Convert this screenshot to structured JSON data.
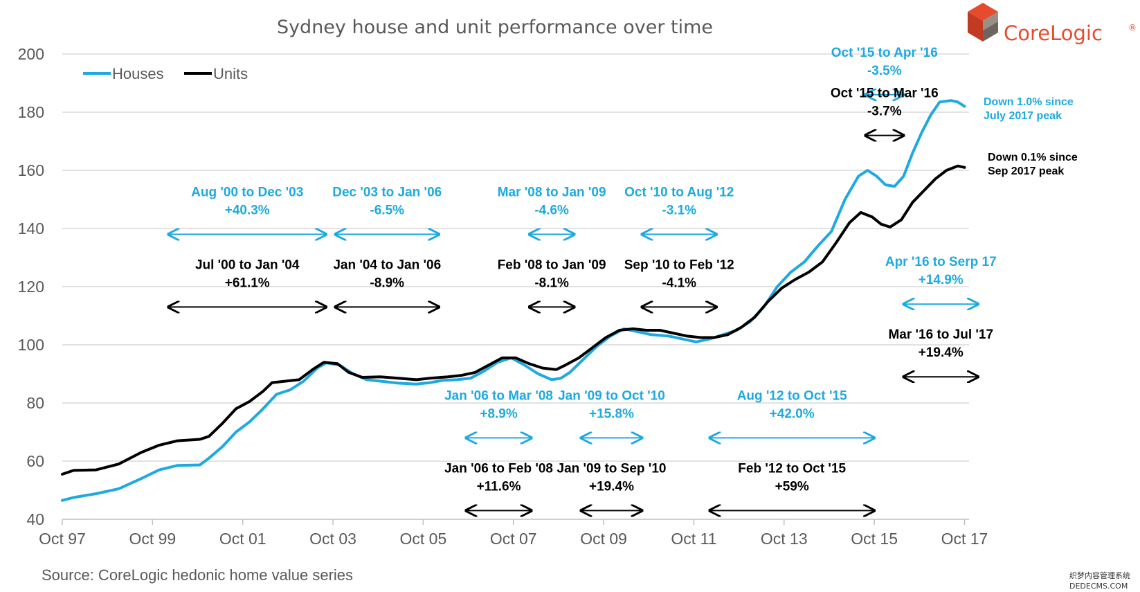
{
  "chart_data": {
    "type": "line",
    "title": "Sydney house and unit performance over time",
    "ylim": [
      40,
      200
    ],
    "yticks": [
      40,
      60,
      80,
      100,
      120,
      140,
      160,
      180,
      200
    ],
    "xticks": [
      "Oct 97",
      "Oct 99",
      "Oct 01",
      "Oct 03",
      "Oct 05",
      "Oct 07",
      "Oct 09",
      "Oct 11",
      "Oct 13",
      "Oct 15",
      "Oct 17"
    ],
    "xlim_years": [
      1997.75,
      2017.85
    ],
    "grid": "horizontal",
    "legend": "top-left",
    "series": [
      {
        "name": "Houses",
        "color": "#1ea9e0",
        "points": [
          [
            1997.75,
            46.5
          ],
          [
            1998.0,
            47.5
          ],
          [
            1998.5,
            48.8
          ],
          [
            1999.0,
            50.5
          ],
          [
            1999.5,
            54.0
          ],
          [
            1999.9,
            57.0
          ],
          [
            2000.3,
            58.5
          ],
          [
            2000.8,
            58.7
          ],
          [
            2001.0,
            61.0
          ],
          [
            2001.3,
            65.0
          ],
          [
            2001.6,
            70.0
          ],
          [
            2001.9,
            73.5
          ],
          [
            2002.2,
            78.0
          ],
          [
            2002.5,
            83.0
          ],
          [
            2002.8,
            84.5
          ],
          [
            2003.1,
            87.5
          ],
          [
            2003.4,
            92.0
          ],
          [
            2003.6,
            93.8
          ],
          [
            2003.9,
            93.0
          ],
          [
            2004.2,
            90.0
          ],
          [
            2004.5,
            88.0
          ],
          [
            2004.8,
            87.5
          ],
          [
            2005.2,
            86.8
          ],
          [
            2005.6,
            86.5
          ],
          [
            2005.9,
            87.0
          ],
          [
            2006.2,
            87.8
          ],
          [
            2006.5,
            88.0
          ],
          [
            2006.8,
            88.5
          ],
          [
            2007.1,
            91.0
          ],
          [
            2007.4,
            94.0
          ],
          [
            2007.7,
            95.5
          ],
          [
            2008.0,
            93.0
          ],
          [
            2008.3,
            90.0
          ],
          [
            2008.6,
            88.0
          ],
          [
            2008.8,
            88.5
          ],
          [
            2009.0,
            90.5
          ],
          [
            2009.3,
            95.0
          ],
          [
            2009.6,
            99.5
          ],
          [
            2009.9,
            103.0
          ],
          [
            2010.2,
            105.5
          ],
          [
            2010.5,
            104.5
          ],
          [
            2010.8,
            103.5
          ],
          [
            2011.2,
            103.0
          ],
          [
            2011.5,
            102.0
          ],
          [
            2011.8,
            101.0
          ],
          [
            2012.1,
            102.0
          ],
          [
            2012.4,
            103.5
          ],
          [
            2012.7,
            105.0
          ],
          [
            2013.0,
            108.0
          ],
          [
            2013.3,
            113.0
          ],
          [
            2013.6,
            120.0
          ],
          [
            2013.9,
            125.0
          ],
          [
            2014.2,
            128.5
          ],
          [
            2014.5,
            134.0
          ],
          [
            2014.8,
            139.0
          ],
          [
            2015.1,
            150.0
          ],
          [
            2015.4,
            158.0
          ],
          [
            2015.6,
            160.0
          ],
          [
            2015.8,
            158.0
          ],
          [
            2016.0,
            155.0
          ],
          [
            2016.2,
            154.5
          ],
          [
            2016.4,
            158.0
          ],
          [
            2016.6,
            166.0
          ],
          [
            2016.8,
            173.0
          ],
          [
            2017.0,
            179.0
          ],
          [
            2017.2,
            183.5
          ],
          [
            2017.45,
            184.0
          ],
          [
            2017.6,
            183.5
          ],
          [
            2017.75,
            182.0
          ]
        ]
      },
      {
        "name": "Units",
        "color": "#000000",
        "points": [
          [
            1997.75,
            55.5
          ],
          [
            1998.0,
            56.8
          ],
          [
            1998.5,
            57.0
          ],
          [
            1999.0,
            59.0
          ],
          [
            1999.5,
            63.0
          ],
          [
            1999.9,
            65.5
          ],
          [
            2000.3,
            67.0
          ],
          [
            2000.8,
            67.5
          ],
          [
            2001.0,
            68.5
          ],
          [
            2001.3,
            73.0
          ],
          [
            2001.6,
            78.0
          ],
          [
            2001.9,
            80.5
          ],
          [
            2002.2,
            84.0
          ],
          [
            2002.4,
            87.0
          ],
          [
            2002.7,
            87.5
          ],
          [
            2003.0,
            88.0
          ],
          [
            2003.3,
            91.5
          ],
          [
            2003.55,
            94.0
          ],
          [
            2003.85,
            93.5
          ],
          [
            2004.1,
            90.5
          ],
          [
            2004.4,
            88.8
          ],
          [
            2004.8,
            89.0
          ],
          [
            2005.2,
            88.5
          ],
          [
            2005.6,
            88.0
          ],
          [
            2005.9,
            88.5
          ],
          [
            2006.3,
            89.0
          ],
          [
            2006.6,
            89.5
          ],
          [
            2006.9,
            90.5
          ],
          [
            2007.2,
            93.0
          ],
          [
            2007.5,
            95.5
          ],
          [
            2007.8,
            95.5
          ],
          [
            2008.1,
            93.5
          ],
          [
            2008.4,
            92.0
          ],
          [
            2008.7,
            91.5
          ],
          [
            2008.9,
            93.0
          ],
          [
            2009.2,
            95.5
          ],
          [
            2009.5,
            99.0
          ],
          [
            2009.8,
            102.5
          ],
          [
            2010.1,
            105.0
          ],
          [
            2010.4,
            105.5
          ],
          [
            2010.7,
            105.0
          ],
          [
            2011.0,
            105.0
          ],
          [
            2011.3,
            104.0
          ],
          [
            2011.6,
            103.0
          ],
          [
            2011.9,
            102.5
          ],
          [
            2012.2,
            102.5
          ],
          [
            2012.5,
            103.5
          ],
          [
            2012.8,
            106.0
          ],
          [
            2013.1,
            109.5
          ],
          [
            2013.4,
            115.0
          ],
          [
            2013.7,
            119.5
          ],
          [
            2014.0,
            122.5
          ],
          [
            2014.3,
            125.0
          ],
          [
            2014.6,
            128.5
          ],
          [
            2014.9,
            135.0
          ],
          [
            2015.2,
            142.0
          ],
          [
            2015.45,
            145.5
          ],
          [
            2015.7,
            144.0
          ],
          [
            2015.9,
            141.5
          ],
          [
            2016.1,
            140.5
          ],
          [
            2016.35,
            143.0
          ],
          [
            2016.6,
            149.0
          ],
          [
            2016.85,
            153.0
          ],
          [
            2017.1,
            157.0
          ],
          [
            2017.35,
            160.0
          ],
          [
            2017.6,
            161.5
          ],
          [
            2017.75,
            161.0
          ]
        ]
      }
    ],
    "annotations": [
      {
        "label": "Aug '00 to Dec '03",
        "value": "+40.3%",
        "color": "#1ea9e0",
        "from": 2000.1,
        "to": 2003.6,
        "y": 138
      },
      {
        "label": "Dec '03 to Jan '06",
        "value": "-6.5%",
        "color": "#1ea9e0",
        "from": 2003.8,
        "to": 2006.1,
        "y": 138
      },
      {
        "label": "Mar '08 to Jan '09",
        "value": "-4.6%",
        "color": "#1ea9e0",
        "from": 2008.1,
        "to": 2009.1,
        "y": 138
      },
      {
        "label": "Oct '10 to Aug '12",
        "value": "-3.1%",
        "color": "#1ea9e0",
        "from": 2010.6,
        "to": 2012.25,
        "y": 138
      },
      {
        "label": "Jul '00 to Jan '04",
        "value": "+61.1%",
        "color": "#000000",
        "from": 2000.1,
        "to": 2003.6,
        "y": 113
      },
      {
        "label": "Jan '04 to Jan '06",
        "value": "-8.9%",
        "color": "#000000",
        "from": 2003.8,
        "to": 2006.1,
        "y": 113
      },
      {
        "label": "Feb '08 to Jan '09",
        "value": "-8.1%",
        "color": "#000000",
        "from": 2008.1,
        "to": 2009.1,
        "y": 113
      },
      {
        "label": "Sep '10 to Feb '12",
        "value": "-4.1%",
        "color": "#000000",
        "from": 2010.6,
        "to": 2012.25,
        "y": 113
      },
      {
        "label": "Oct '15 to Apr '16",
        "value": "-3.5%",
        "color": "#1ea9e0",
        "from": 2015.55,
        "to": 2016.4,
        "y": 186
      },
      {
        "label": "Oct '15 to Mar '16",
        "value": "-3.7%",
        "color": "#000000",
        "from": 2015.55,
        "to": 2016.4,
        "y": 172
      },
      {
        "label": "Apr '16 to Serp 17",
        "value": "+14.9%",
        "color": "#1ea9e0",
        "from": 2016.4,
        "to": 2018.05,
        "y": 114
      },
      {
        "label": "Mar '16 to Jul '17",
        "value": "+19.4%",
        "color": "#000000",
        "from": 2016.4,
        "to": 2018.05,
        "y": 89
      },
      {
        "label": "Jan '06 to Mar '08",
        "value": "+8.9%",
        "color": "#1ea9e0",
        "from": 2006.7,
        "to": 2008.15,
        "y": 68
      },
      {
        "label": "Jan '09 to Oct '10",
        "value": "+15.8%",
        "color": "#1ea9e0",
        "from": 2009.25,
        "to": 2010.6,
        "y": 68
      },
      {
        "label": "Aug '12 to Oct '15",
        "value": "+42.0%",
        "color": "#1ea9e0",
        "from": 2012.1,
        "to": 2015.75,
        "y": 68
      },
      {
        "label": "Jan '06 to Feb '08",
        "value": "+11.6%",
        "color": "#000000",
        "from": 2006.7,
        "to": 2008.15,
        "y": 43
      },
      {
        "label": "Jan '09 to Sep '10",
        "value": "+19.4%",
        "color": "#000000",
        "from": 2009.25,
        "to": 2010.6,
        "y": 43
      },
      {
        "label": "Feb '12 to Oct '15",
        "value": "+59%",
        "color": "#000000",
        "from": 2012.1,
        "to": 2015.75,
        "y": 43
      }
    ],
    "notes": [
      {
        "lines": [
          "Down 1.0% since",
          "July 2017 peak"
        ],
        "color": "#1ea9e0"
      },
      {
        "lines": [
          "Down 0.1% since",
          "Sep 2017 peak"
        ],
        "color": "#000000"
      }
    ]
  },
  "source": "Source:  CoreLogic hedonic home value series",
  "brand": {
    "name": "CoreLogic",
    "mark": "®",
    "color": "#e64b2f"
  },
  "watermark": {
    "line1": "织梦内容管理系统",
    "line2": "DEDECMS.COM"
  }
}
